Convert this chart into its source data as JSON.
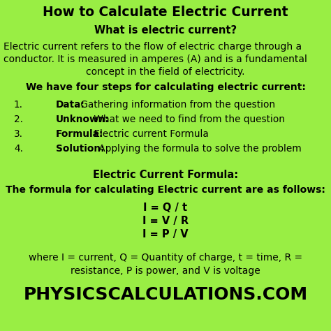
{
  "title": "How to Calculate Electric Current",
  "bg_color": "#99ee44",
  "text_color": "#000000",
  "subtitle": "What is electric current?",
  "intro_lines": [
    "Electric current refers to the flow of electric charge through a",
    "conductor. It is measured in amperes (A) and is a fundamental",
    "concept in the field of electricity."
  ],
  "steps_header": "We have four steps for calculating electric current:",
  "steps": [
    {
      "num": "1.",
      "bold": "Data:",
      "rest": " Gathering information from the question"
    },
    {
      "num": "2.",
      "bold": "Unknown:",
      "rest": " What we need to find from the question"
    },
    {
      "num": "3.",
      "bold": "Formula:",
      "rest": " Electric current Formula"
    },
    {
      "num": "4.",
      "bold": "Solution:",
      "rest": " Applying the formula to solve the problem"
    }
  ],
  "formula_header": "Electric Current Formula:",
  "formula_subheader": "The formula for calculating Electric current are as follows:",
  "formulas": [
    "I = Q / t",
    "I = V / R",
    "I = P / V"
  ],
  "where_line1": "where I = current, Q = Quantity of charge, t = time, R =",
  "where_line2": "resistance, P is power, and V is voltage",
  "footer": "PHYSICSCALCULATIONS.COM",
  "title_fontsize": 13.5,
  "subtitle_fontsize": 10.5,
  "intro_fontsize": 10.0,
  "steps_header_fontsize": 10.0,
  "step_fontsize": 9.8,
  "formula_header_fontsize": 10.5,
  "formula_sub_fontsize": 10.0,
  "formula_fontsize": 10.5,
  "where_fontsize": 10.0,
  "footer_fontsize": 18.0
}
